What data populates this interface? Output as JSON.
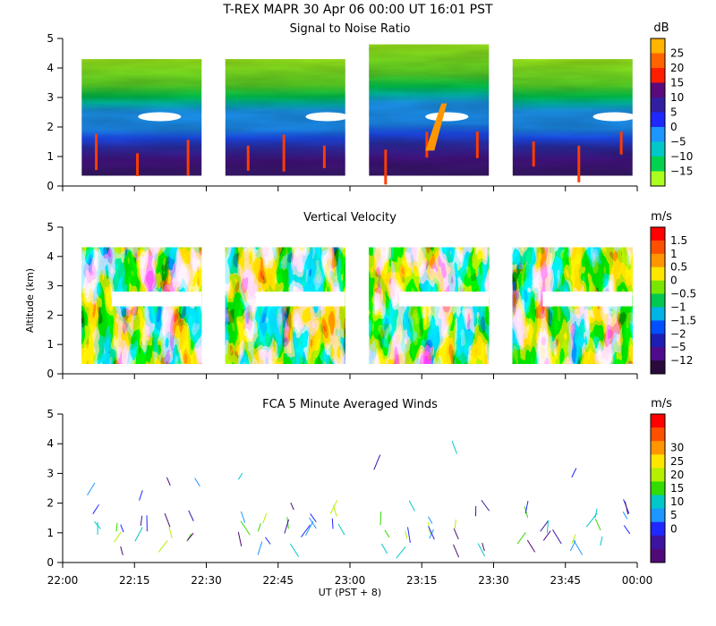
{
  "chart_data": {
    "title": "T-REX   MAPR 30 Apr 06   00:00 UT   16:01   PST",
    "xlabel": "UT  (PST + 8)",
    "ylabel": "Altitude (km)",
    "x_ticks": [
      "22:00",
      "22:15",
      "22:30",
      "22:45",
      "23:00",
      "23:15",
      "23:30",
      "23:45",
      "00:00"
    ],
    "x_range_minutes": [
      0,
      120
    ],
    "data_segments_minutes": [
      [
        4,
        29
      ],
      [
        34,
        59
      ],
      [
        64,
        89
      ],
      [
        94,
        119
      ]
    ],
    "panels": [
      {
        "type": "heatmap",
        "title": "Signal to Noise Ratio",
        "unit": "dB",
        "ylim": [
          0,
          5
        ],
        "y_ticks": [
          "0",
          "1",
          "2",
          "3",
          "4",
          "5"
        ],
        "colorbar_labels": [
          "25",
          "20",
          "15",
          "10",
          "5",
          "0",
          "−5",
          "−10",
          "−15"
        ],
        "colorbar_colors": [
          "#ffb400",
          "#ff6400",
          "#ff1e00",
          "#5a0a7a",
          "#321ea0",
          "#1e28ff",
          "#1e96ff",
          "#00c8c8",
          "#00d250",
          "#aaff1e"
        ]
      },
      {
        "type": "heatmap",
        "title": "Vertical Velocity",
        "unit": "m/s",
        "ylim": [
          0,
          5
        ],
        "y_ticks": [
          "0",
          "1",
          "2",
          "3",
          "4",
          "5"
        ],
        "colorbar_labels": [
          "1.5",
          "1",
          "0.5",
          "0",
          "−0.5",
          "−1",
          "−1.5",
          "−2",
          "−5",
          "−12"
        ],
        "colorbar_colors": [
          "#ff0000",
          "#ff5000",
          "#ff9600",
          "#ffe600",
          "#78e600",
          "#00c850",
          "#00b4e6",
          "#0050ff",
          "#1e1eb4",
          "#500a8c",
          "#2a0a3c"
        ]
      },
      {
        "type": "scatter",
        "title": "FCA 5 Minute Averaged Winds",
        "unit": "m/s",
        "ylim": [
          0,
          5
        ],
        "y_ticks": [
          "0",
          "1",
          "2",
          "3",
          "4",
          "5"
        ],
        "colorbar_labels": [
          "30",
          "25",
          "20",
          "15",
          "10",
          "5",
          "0"
        ],
        "colorbar_colors": [
          "#ff0000",
          "#ff5000",
          "#ff9600",
          "#ffe600",
          "#b4f000",
          "#32dc00",
          "#00c8c8",
          "#1e96ff",
          "#1e28ff",
          "#3c14a0",
          "#500a78"
        ]
      }
    ]
  }
}
